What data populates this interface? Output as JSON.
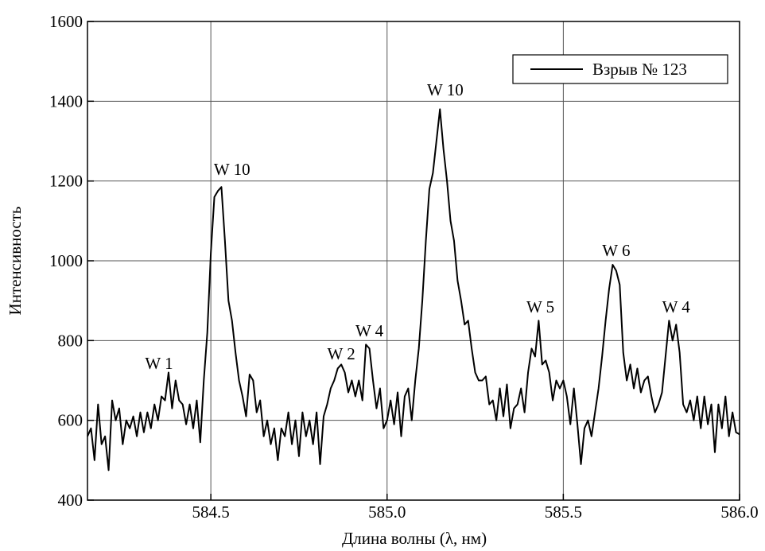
{
  "chart_data": {
    "type": "line",
    "x_label": "Длина волны (λ, нм)",
    "y_label": "Интенсивность",
    "xlim": [
      584.15,
      586.0
    ],
    "ylim": [
      400,
      1600
    ],
    "xticks": [
      584.5,
      {
        "value": 585.0,
        "label": "585.0"
      },
      585.5,
      {
        "value": 586.0,
        "label": "586.0"
      }
    ],
    "yticks": [
      400,
      600,
      800,
      1000,
      1200,
      1400,
      1600
    ],
    "grid": true,
    "legend": "upper right",
    "x": [
      584.15,
      584.16,
      584.17,
      584.18,
      584.19,
      584.2,
      584.21,
      584.22,
      584.23,
      584.24,
      584.25,
      584.26,
      584.27,
      584.28,
      584.29,
      584.3,
      584.31,
      584.32,
      584.33,
      584.34,
      584.35,
      584.36,
      584.37,
      584.38,
      584.39,
      584.4,
      584.41,
      584.42,
      584.43,
      584.44,
      584.45,
      584.46,
      584.47,
      584.48,
      584.49,
      584.5,
      584.51,
      584.52,
      584.53,
      584.54,
      584.55,
      584.56,
      584.57,
      584.58,
      584.59,
      584.6,
      584.61,
      584.62,
      584.63,
      584.64,
      584.65,
      584.66,
      584.67,
      584.68,
      584.69,
      584.7,
      584.71,
      584.72,
      584.73,
      584.74,
      584.75,
      584.76,
      584.77,
      584.78,
      584.79,
      584.8,
      584.81,
      584.82,
      584.83,
      584.84,
      584.85,
      584.86,
      584.87,
      584.88,
      584.89,
      584.9,
      584.91,
      584.92,
      584.93,
      584.94,
      584.95,
      584.96,
      584.97,
      584.98,
      584.99,
      585.0,
      585.01,
      585.02,
      585.03,
      585.04,
      585.05,
      585.06,
      585.07,
      585.08,
      585.09,
      585.1,
      585.11,
      585.12,
      585.13,
      585.14,
      585.15,
      585.16,
      585.17,
      585.18,
      585.19,
      585.2,
      585.21,
      585.22,
      585.23,
      585.24,
      585.25,
      585.26,
      585.27,
      585.28,
      585.29,
      585.3,
      585.31,
      585.32,
      585.33,
      585.34,
      585.35,
      585.36,
      585.37,
      585.38,
      585.39,
      585.4,
      585.41,
      585.42,
      585.43,
      585.44,
      585.45,
      585.46,
      585.47,
      585.48,
      585.49,
      585.5,
      585.51,
      585.52,
      585.53,
      585.54,
      585.55,
      585.56,
      585.57,
      585.58,
      585.59,
      585.6,
      585.61,
      585.62,
      585.63,
      585.64,
      585.65,
      585.66,
      585.67,
      585.68,
      585.69,
      585.7,
      585.71,
      585.72,
      585.73,
      585.74,
      585.75,
      585.76,
      585.77,
      585.78,
      585.79,
      585.8,
      585.81,
      585.82,
      585.83,
      585.84,
      585.85,
      585.86,
      585.87,
      585.88,
      585.89,
      585.9,
      585.91,
      585.92,
      585.93,
      585.94,
      585.95,
      585.96,
      585.97,
      585.98,
      585.99,
      586.0
    ],
    "series": [
      {
        "name": "Взрыв № 123",
        "color": "#000000",
        "values": [
          560,
          580,
          500,
          640,
          540,
          560,
          475,
          650,
          600,
          630,
          540,
          600,
          580,
          610,
          560,
          620,
          570,
          620,
          580,
          640,
          600,
          660,
          650,
          720,
          630,
          700,
          650,
          640,
          590,
          640,
          580,
          650,
          545,
          700,
          820,
          1020,
          1160,
          1175,
          1185,
          1050,
          900,
          850,
          770,
          700,
          660,
          610,
          715,
          700,
          620,
          650,
          560,
          600,
          540,
          580,
          500,
          580,
          560,
          620,
          540,
          600,
          510,
          620,
          560,
          600,
          540,
          620,
          490,
          610,
          640,
          680,
          700,
          730,
          740,
          720,
          670,
          700,
          660,
          700,
          650,
          790,
          780,
          700,
          630,
          680,
          580,
          600,
          650,
          590,
          670,
          560,
          660,
          680,
          600,
          700,
          780,
          900,
          1050,
          1180,
          1220,
          1300,
          1380,
          1280,
          1200,
          1100,
          1050,
          950,
          900,
          840,
          850,
          780,
          720,
          700,
          700,
          710,
          640,
          650,
          600,
          680,
          610,
          690,
          580,
          630,
          640,
          680,
          620,
          720,
          780,
          760,
          850,
          740,
          750,
          720,
          650,
          700,
          680,
          700,
          660,
          590,
          680,
          590,
          490,
          580,
          600,
          560,
          620,
          680,
          760,
          850,
          930,
          990,
          975,
          940,
          770,
          700,
          740,
          680,
          730,
          670,
          700,
          710,
          660,
          620,
          640,
          670,
          760,
          850,
          800,
          840,
          770,
          640,
          620,
          650,
          600,
          660,
          580,
          660,
          590,
          640,
          520,
          640,
          580,
          660,
          560,
          620,
          570,
          565
        ]
      }
    ],
    "annotations": [
      {
        "text": "W 1",
        "x": 584.353,
        "y": 729
      },
      {
        "text": "W 10",
        "x": 584.56,
        "y": 1215
      },
      {
        "text": "W 2",
        "x": 584.87,
        "y": 753
      },
      {
        "text": "W 4",
        "x": 584.95,
        "y": 811
      },
      {
        "text": "W 10",
        "x": 585.165,
        "y": 1415
      },
      {
        "text": "W 5",
        "x": 585.435,
        "y": 870
      },
      {
        "text": "W 6",
        "x": 585.65,
        "y": 1012
      },
      {
        "text": "W 4",
        "x": 585.82,
        "y": 870
      }
    ]
  }
}
